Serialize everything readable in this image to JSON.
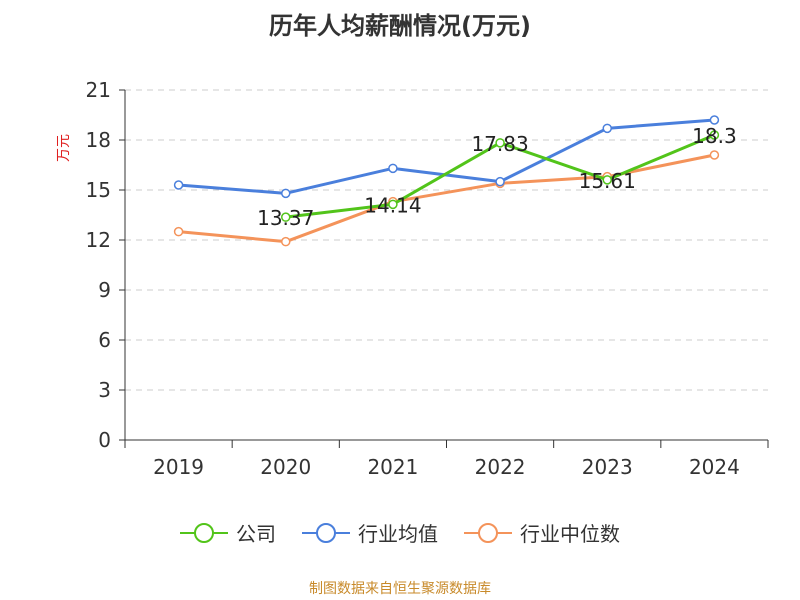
{
  "chart_data": {
    "type": "line",
    "title": "历年人均薪酬情况(万元)",
    "ylabel": "万元",
    "xlabel": "",
    "categories": [
      "2019",
      "2020",
      "2021",
      "2022",
      "2023",
      "2024"
    ],
    "ylim": [
      0,
      21
    ],
    "yticks": [
      0,
      3,
      6,
      9,
      12,
      15,
      18,
      21
    ],
    "grid": true,
    "legend_position": "bottom",
    "series": [
      {
        "name": "公司",
        "color": "#52c41a",
        "values": [
          null,
          13.37,
          14.14,
          17.83,
          15.61,
          18.3
        ],
        "labels": [
          null,
          "13.37",
          "14.14",
          "17.83",
          "15.61",
          "18.3"
        ]
      },
      {
        "name": "行业均值",
        "color": "#4a7fdc",
        "values": [
          15.3,
          14.8,
          16.3,
          15.5,
          18.7,
          19.2
        ]
      },
      {
        "name": "行业中位数",
        "color": "#f4935a",
        "values": [
          12.5,
          11.9,
          14.3,
          15.4,
          15.8,
          17.1
        ]
      }
    ],
    "source": "制图数据来自恒生聚源数据库"
  }
}
